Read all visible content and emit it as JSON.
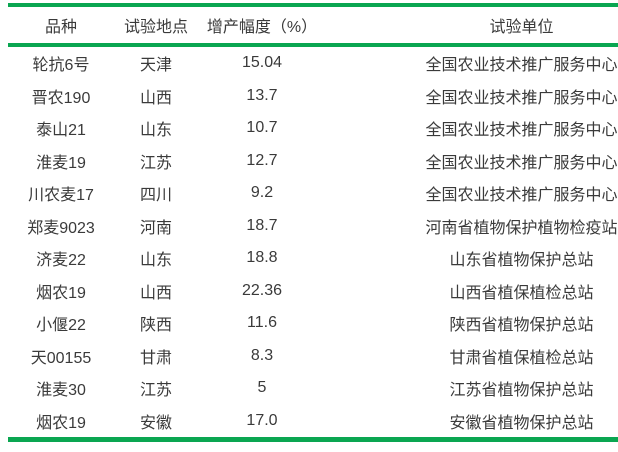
{
  "colors": {
    "rule_green": "#0aa651",
    "text_color": "#3a3a3a",
    "page_background": "#ffffff"
  },
  "table": {
    "columns": [
      "品种",
      "试验地点",
      "增产幅度（%）",
      "试验单位"
    ],
    "rows": [
      [
        "轮抗6号",
        "天津",
        "15.04",
        "全国农业技术推广服务中心"
      ],
      [
        "晋农190",
        "山西",
        "13.7",
        "全国农业技术推广服务中心"
      ],
      [
        "泰山21",
        "山东",
        "10.7",
        "全国农业技术推广服务中心"
      ],
      [
        "淮麦19",
        "江苏",
        "12.7",
        "全国农业技术推广服务中心"
      ],
      [
        "川农麦17",
        "四川",
        "9.2",
        "全国农业技术推广服务中心"
      ],
      [
        "郑麦9023",
        "河南",
        "18.7",
        "河南省植物保护植物检疫站"
      ],
      [
        "济麦22",
        "山东",
        "18.8",
        "山东省植物保护总站"
      ],
      [
        "烟农19",
        "山西",
        "22.36",
        "山西省植保植检总站"
      ],
      [
        "小偃22",
        "陕西",
        "11.6",
        "陕西省植物保护总站"
      ],
      [
        "天00155",
        "甘肃",
        "8.3",
        "甘肃省植保植检总站"
      ],
      [
        "淮麦30",
        "江苏",
        "5",
        "江苏省植物保护总站"
      ],
      [
        "烟农19",
        "安徽",
        "17.0",
        "安徽省植物保护总站"
      ]
    ]
  }
}
